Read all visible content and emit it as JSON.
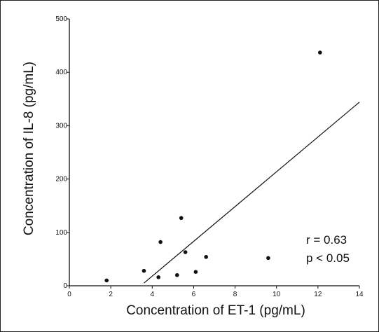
{
  "chart_data": {
    "type": "scatter",
    "title": "",
    "xlabel": "Concentration of ET-1 (pg/mL)",
    "ylabel": "Concentration of IL-8 (pg/mL)",
    "xlim": [
      0,
      14
    ],
    "ylim": [
      0,
      500
    ],
    "x_ticks": [
      "0",
      "2",
      "4",
      "6",
      "8",
      "10",
      "12",
      "14"
    ],
    "y_ticks": [
      "0",
      "100",
      "200",
      "300",
      "400",
      "500"
    ],
    "grid": false,
    "points": [
      {
        "x": 1.8,
        "y": 10
      },
      {
        "x": 3.6,
        "y": 28
      },
      {
        "x": 4.3,
        "y": 16
      },
      {
        "x": 4.4,
        "y": 82
      },
      {
        "x": 5.2,
        "y": 20
      },
      {
        "x": 5.4,
        "y": 127
      },
      {
        "x": 5.6,
        "y": 63
      },
      {
        "x": 6.1,
        "y": 26
      },
      {
        "x": 6.6,
        "y": 54
      },
      {
        "x": 9.6,
        "y": 52
      },
      {
        "x": 12.1,
        "y": 437
      }
    ],
    "regression_line": {
      "x": [
        3.6,
        14.0
      ],
      "y": [
        5,
        344
      ]
    },
    "annotations": [
      "r = 0.63",
      "p < 0.05"
    ],
    "colors": {
      "points": "#111111",
      "line": "#111111",
      "axes": "#111111"
    }
  }
}
